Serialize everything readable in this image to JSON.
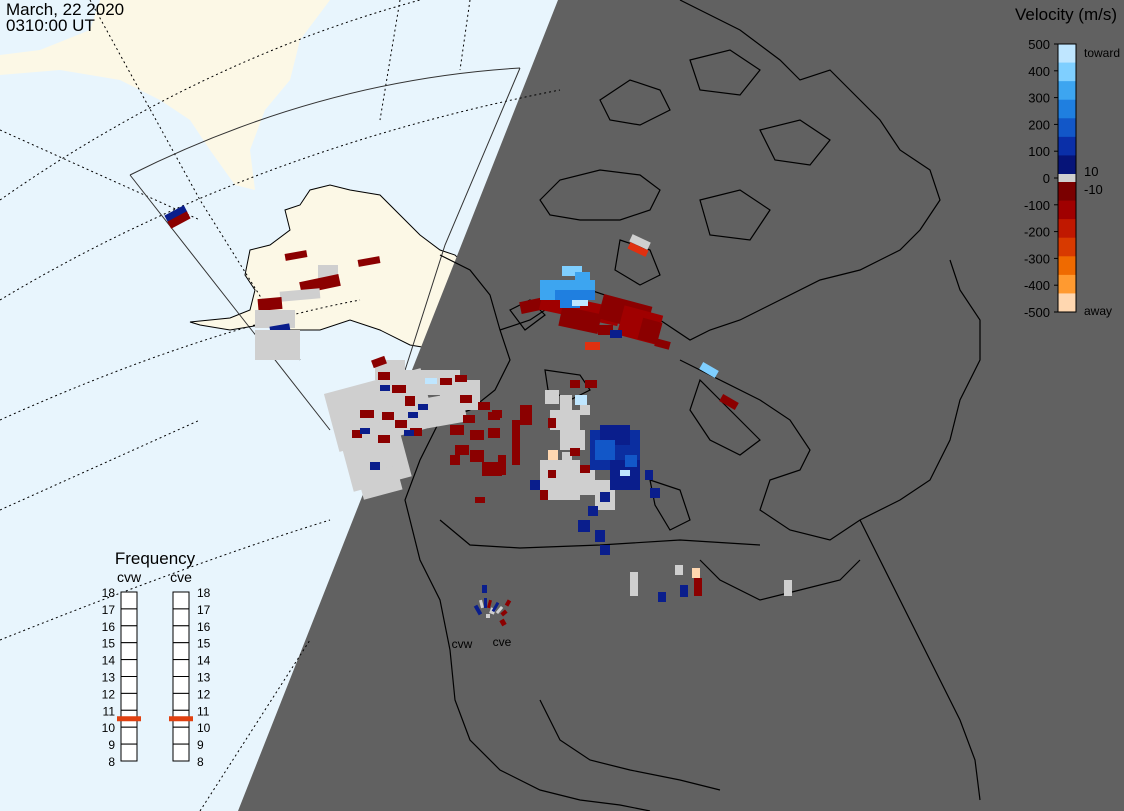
{
  "header": {
    "date": "March, 22 2020",
    "time": "0310:00 UT"
  },
  "colorbar": {
    "title": "Velocity (m/s)",
    "ticks": [
      "500",
      "400",
      "300",
      "200",
      "100",
      "0",
      "-100",
      "-200",
      "-300",
      "-400",
      "-500"
    ],
    "near_zero_labels": [
      "10",
      "-10"
    ],
    "toward_label": "toward",
    "away_label": "away",
    "colors_toward": [
      "#bfe6ff",
      "#7fcfff",
      "#3da5f0",
      "#1f7fe0",
      "#1257c8",
      "#0a2fa8",
      "#061478"
    ],
    "colors_away": [
      "#7a0000",
      "#a00000",
      "#c01800",
      "#d83a00",
      "#ef6a00",
      "#ff9a30",
      "#ffd7b0"
    ]
  },
  "frequency_panel": {
    "title": "Frequency",
    "radars": [
      "cvw",
      "cve"
    ],
    "scale": [
      "18",
      "17",
      "16",
      "15",
      "14",
      "13",
      "12",
      "11",
      "10",
      "9",
      "8"
    ],
    "current_mhz": [
      10.5,
      10.5
    ],
    "marker_color": "#e04010"
  },
  "map": {
    "radar_site_labels": [
      "cvw",
      "cve"
    ],
    "land_color": "#fcf8e6",
    "ocean_color": "#e8f5fd",
    "night_color": "#616161",
    "gs_color": "#cfcfcf"
  }
}
